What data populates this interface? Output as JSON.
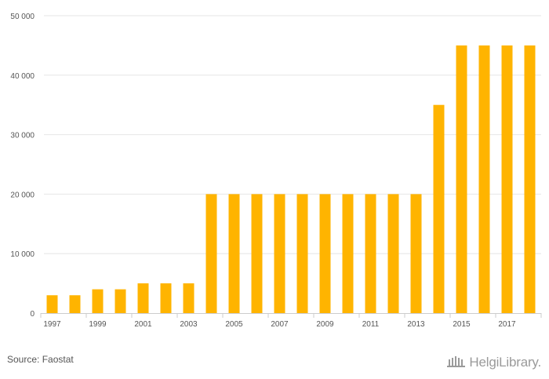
{
  "chart_data": {
    "type": "bar",
    "categories": [
      "1997",
      "1998",
      "1999",
      "2000",
      "2001",
      "2002",
      "2003",
      "2004",
      "2005",
      "2006",
      "2007",
      "2008",
      "2009",
      "2010",
      "2011",
      "2012",
      "2013",
      "2014",
      "2015",
      "2016",
      "2017",
      "2018"
    ],
    "values": [
      3000,
      3000,
      4000,
      4000,
      5000,
      5000,
      5000,
      20000,
      20000,
      20000,
      20000,
      20000,
      20000,
      20000,
      20000,
      20000,
      20000,
      35000,
      45000,
      45000,
      45000,
      45000
    ],
    "x_tick_labels": [
      "1997",
      "1999",
      "2001",
      "2003",
      "2005",
      "2007",
      "2009",
      "2011",
      "2013",
      "2015",
      "2017"
    ],
    "y_ticks": [
      0,
      10000,
      20000,
      30000,
      40000,
      50000
    ],
    "y_tick_labels": [
      "0",
      "10 000",
      "20 000",
      "30 000",
      "40 000",
      "50 000"
    ],
    "ylim": [
      0,
      50000
    ],
    "grid": true,
    "bar_color": "#FFB400",
    "title": "",
    "xlabel": "",
    "ylabel": ""
  },
  "footer": {
    "source": "Source: Faostat",
    "logo_text": "HelgiLibrary."
  }
}
